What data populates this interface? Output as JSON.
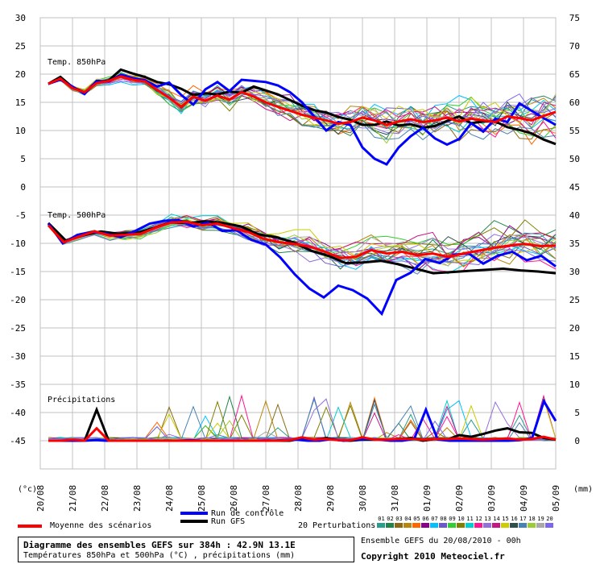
{
  "chart_data": {
    "type": "line",
    "left_axis_ticks": [
      "30",
      "25",
      "20",
      "15",
      "10",
      "5",
      "0",
      "-5",
      "-10",
      "-15",
      "-20",
      "-25",
      "-30",
      "-35",
      "-40",
      "-45"
    ],
    "right_axis_ticks": [
      "75",
      "70",
      "65",
      "60",
      "55",
      "50",
      "45",
      "40",
      "35",
      "30",
      "25",
      "20",
      "15",
      "10",
      "5",
      "0"
    ],
    "left_axis_unit": "(°c)",
    "right_axis_unit": "(mm)",
    "x_ticks": [
      "20/08",
      "21/08",
      "22/08",
      "23/08",
      "24/08",
      "25/08",
      "26/08",
      "27/08",
      "28/08",
      "29/08",
      "30/08",
      "31/08",
      "01/09",
      "02/09",
      "03/09",
      "04/09",
      "05/09"
    ],
    "panels": [
      {
        "label": "Temp. 850hPa",
        "axis": "left",
        "mean": [
          18.3,
          19.2,
          17.5,
          16.8,
          18.4,
          18.8,
          19.6,
          19.0,
          18.7,
          17.2,
          15.8,
          14.2,
          16.0,
          15.3,
          16.2,
          15.5,
          16.8,
          16.0,
          15.0,
          14.2,
          13.5,
          12.8,
          12.3,
          11.8,
          11.2,
          11.5,
          12.3,
          11.8,
          11.0,
          11.6,
          12.0,
          11.5,
          11.8,
          12.3,
          11.6,
          12.1,
          11.8,
          11.5,
          12.5,
          12.2,
          11.8,
          12.6,
          13.3
        ],
        "control": [
          18.3,
          19.0,
          17.8,
          16.5,
          18.8,
          18.7,
          19.9,
          19.3,
          18.9,
          17.8,
          18.5,
          16.3,
          14.6,
          17.3,
          18.6,
          17.0,
          19.0,
          18.8,
          18.6,
          18.0,
          16.8,
          15.0,
          12.5,
          10.0,
          11.5,
          11.0,
          7.0,
          5.0,
          4.0,
          7.0,
          9.0,
          10.5,
          8.6,
          7.5,
          8.5,
          11.3,
          9.8,
          12.1,
          11.5,
          14.8,
          13.5,
          12.2,
          11.0
        ],
        "gfs": [
          18.3,
          19.5,
          17.7,
          16.7,
          18.5,
          18.9,
          20.8,
          20.1,
          19.5,
          18.6,
          18.2,
          17.4,
          16.3,
          16.6,
          16.4,
          16.9,
          16.7,
          17.8,
          17.1,
          16.4,
          15.4,
          14.4,
          13.6,
          13.2,
          12.4,
          11.9,
          11.0,
          11.0,
          11.6,
          10.9,
          11.1,
          10.5,
          10.8,
          11.7,
          12.5,
          11.3,
          11.6,
          11.6,
          10.6,
          10.1,
          9.5,
          8.4,
          7.6
        ]
      },
      {
        "label": "Temp. 500hPa",
        "axis": "left",
        "mean": [
          -6.8,
          -9.8,
          -8.8,
          -7.9,
          -8.6,
          -8.5,
          -8.3,
          -7.2,
          -6.3,
          -6.2,
          -6.8,
          -6.5,
          -7.3,
          -8.0,
          -9.2,
          -9.8,
          -10.1,
          -10.6,
          -11.5,
          -12.6,
          -12.4,
          -11.2,
          -11.8,
          -11.5,
          -12.1,
          -11.8,
          -12.4,
          -11.8,
          -11.3,
          -10.8,
          -10.4,
          -10.1,
          -10.5,
          -10.4
        ],
        "control": [
          -6.5,
          -10.0,
          -8.5,
          -8.0,
          -8.3,
          -8.9,
          -7.8,
          -6.5,
          -6.0,
          -5.9,
          -7.0,
          -6.3,
          -7.8,
          -7.7,
          -9.4,
          -10.2,
          -12.5,
          -15.5,
          -18.0,
          -19.6,
          -17.5,
          -18.3,
          -19.8,
          -22.5,
          -16.5,
          -15.2,
          -12.8,
          -13.5,
          -12.0,
          -11.8,
          -13.6,
          -12.2,
          -11.5,
          -13.0,
          -12.2,
          -14.1
        ],
        "gfs": [
          -6.4,
          -9.5,
          -8.6,
          -7.9,
          -8.3,
          -8.2,
          -7.3,
          -6.3,
          -6.4,
          -6.1,
          -6.4,
          -7.0,
          -8.4,
          -8.9,
          -9.8,
          -11.3,
          -12.2,
          -13.5,
          -13.4,
          -13.1,
          -13.7,
          -14.5,
          -15.3,
          -15.1,
          -14.9,
          -14.7,
          -14.5,
          -14.8,
          -15.0,
          -15.3
        ]
      },
      {
        "label": "Précipitations",
        "axis": "right",
        "unit": "mm",
        "mean": [
          0,
          0,
          0.2,
          0,
          2.2,
          0,
          0,
          0,
          0,
          0,
          0,
          0,
          0,
          0,
          0,
          0,
          0,
          0,
          0,
          0,
          0.1,
          0.6,
          0.2,
          0.3,
          0.1,
          0.1,
          0.6,
          0.2,
          0.2,
          0.3,
          0.3,
          0.2,
          0.3,
          0.3,
          0.4,
          0.3,
          0.2,
          0.3,
          0.4,
          0.2,
          0.3,
          0.7,
          0.2
        ],
        "control": [
          0,
          0,
          0,
          0,
          0.1,
          0,
          0,
          0,
          0,
          0,
          0,
          0,
          0.1,
          0,
          0,
          0,
          0,
          0,
          0,
          0,
          0.1,
          0.2,
          0,
          0,
          0.3,
          0,
          0.2,
          0.3,
          0.2,
          0,
          0,
          0.3,
          5.5,
          0.2,
          0,
          0,
          0,
          0,
          0,
          0,
          0.1,
          0.5,
          7.0,
          3.5
        ],
        "gfs": [
          0,
          0,
          0,
          0,
          5.5,
          0,
          0,
          0,
          0,
          0,
          0,
          0,
          0,
          0,
          0,
          0,
          0,
          0,
          0,
          0,
          0,
          0.4,
          0.1,
          0.5,
          0.1,
          0,
          0.2,
          0.2,
          0.2,
          0,
          0.5,
          0,
          0.3,
          0.2,
          1.0,
          0.7,
          1.2,
          1.8,
          2.2,
          1.5,
          1.4,
          0.5,
          0.2
        ]
      }
    ]
  },
  "legend": {
    "mean": "Moyenne des scénarios",
    "control": "Run de contrôle",
    "gfs": "Run GFS",
    "perturbations": "20 Perturbations",
    "pert_numbers": [
      "01",
      "02",
      "03",
      "04",
      "05",
      "06",
      "07",
      "08",
      "09",
      "10",
      "11",
      "12",
      "13",
      "14",
      "15",
      "16",
      "17",
      "18",
      "19",
      "20"
    ],
    "pert_colors": [
      "#2a9d8f",
      "#1e8449",
      "#8b6914",
      "#b8860b",
      "#ff6600",
      "#8b008b",
      "#00bfff",
      "#6a5acd",
      "#32cd32",
      "#808000",
      "#00ced1",
      "#ff1493",
      "#9370db",
      "#c71585",
      "#cccc00",
      "#2f4f4f",
      "#4682b4",
      "#9acd32",
      "#a9a9a9",
      "#7b68ee"
    ]
  },
  "footer": {
    "title": "Diagramme des ensembles GEFS sur 384h : 42.9N 13.1E",
    "subtitle": "Températures 850hPa et 500hPa (°C) , précipitations (mm)",
    "run": "Ensemble GEFS du 20/08/2010 - 00h",
    "copyright": "Copyright 2010 Meteociel.fr"
  },
  "colors": {
    "mean": "#ff0000",
    "control": "#0000ff",
    "gfs": "#000000",
    "grid": "#c0c0c0"
  }
}
